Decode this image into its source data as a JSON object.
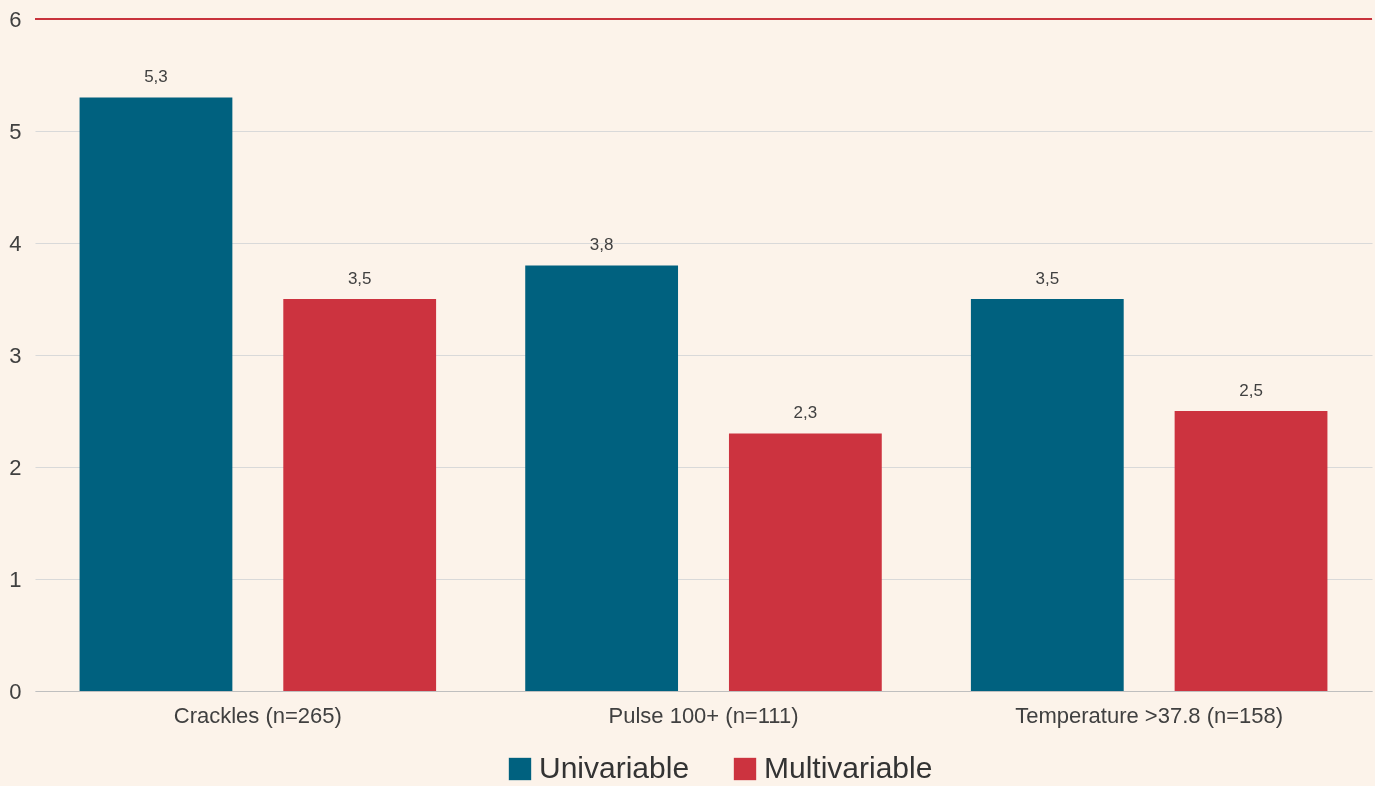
{
  "chart_data": {
    "type": "bar",
    "categories": [
      "Crackles (n=265)",
      "Pulse 100+ (n=111)",
      "Temperature >37.8 (n=158)"
    ],
    "series": [
      {
        "name": "Univariable",
        "color": "#00617f",
        "values": [
          5.3,
          3.8,
          3.5
        ],
        "value_labels": [
          "5,3",
          "3,8",
          "3,5"
        ]
      },
      {
        "name": "Multivariable",
        "color": "#cc333f",
        "values": [
          3.5,
          2.3,
          2.5
        ],
        "value_labels": [
          "3,5",
          "2,3",
          "2,5"
        ]
      }
    ],
    "ylim": [
      0,
      6
    ],
    "yticks": [
      0,
      1,
      2,
      3,
      4,
      5,
      6
    ],
    "grid": "y",
    "legend": "bottom",
    "ref_lines": [
      {
        "axis": "y",
        "value": 6,
        "color": "#c8323c"
      }
    ]
  }
}
